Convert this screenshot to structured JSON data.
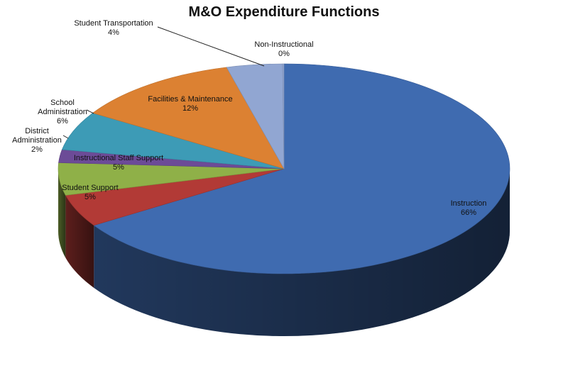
{
  "chart_data": {
    "type": "pie",
    "title": "M&O Expenditure Functions",
    "style": "3d",
    "slices": [
      {
        "label": "Instruction",
        "percent_label": "66%",
        "value": 66,
        "color": "#3f6bb0"
      },
      {
        "label": "Student Support",
        "percent_label": "5%",
        "value": 5,
        "color": "#b23a36"
      },
      {
        "label": "Instructional Staff Support",
        "percent_label": "5%",
        "value": 5,
        "color": "#8fb048"
      },
      {
        "label": "District Administration",
        "percent_label": "2%",
        "value": 2,
        "color": "#6c4b97"
      },
      {
        "label": "School Administration",
        "percent_label": "6%",
        "value": 6,
        "color": "#3d9bb6"
      },
      {
        "label": "Facilities & Maintenance",
        "percent_label": "12%",
        "value": 12,
        "color": "#dc8132"
      },
      {
        "label": "Student Transportation",
        "percent_label": "4%",
        "value": 4,
        "color": "#91a6d2"
      },
      {
        "label": "Non-Instructional",
        "percent_label": "0%",
        "value": 0.1,
        "color": "#91a6d2"
      }
    ]
  }
}
